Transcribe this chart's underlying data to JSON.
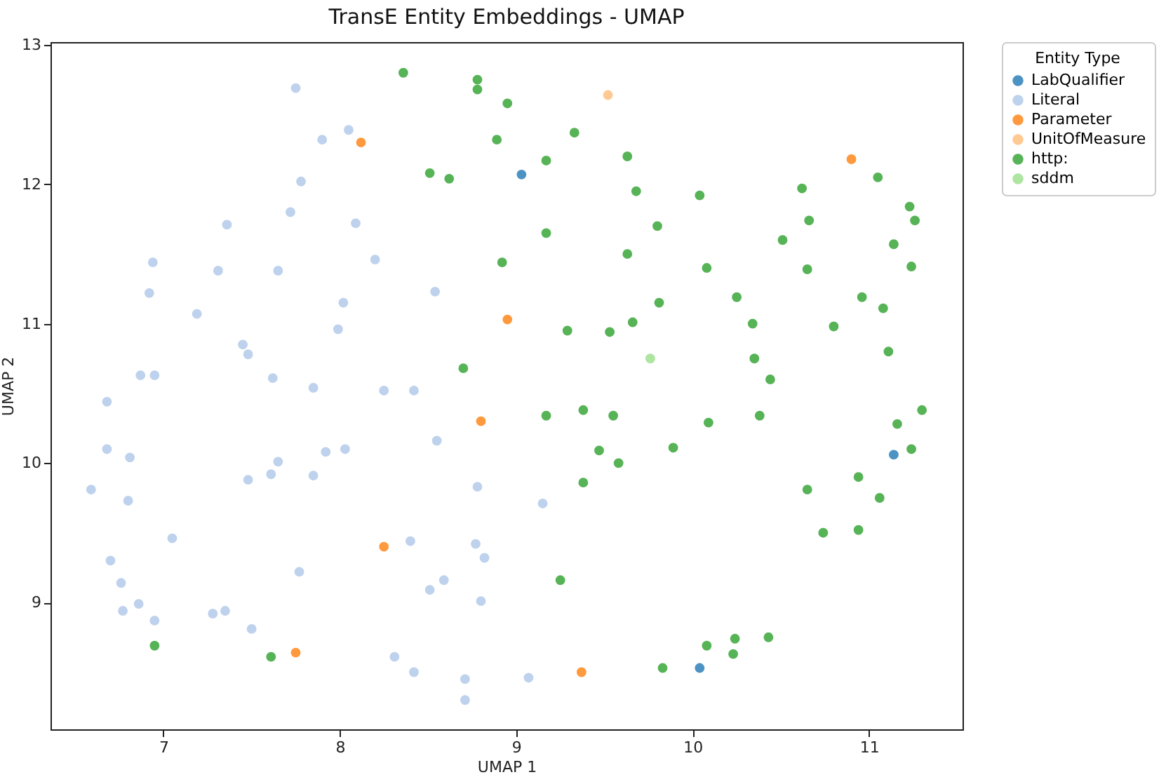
{
  "chart_data": {
    "type": "scatter",
    "title": "TransE Entity Embeddings - UMAP",
    "xlabel": "UMAP 1",
    "ylabel": "UMAP 2",
    "legend_title": "Entity Type",
    "legend": "top right",
    "grid": false,
    "marker": "circle",
    "xlim": [
      6.36,
      11.53
    ],
    "ylim": [
      8.09,
      13.02
    ],
    "xticks": [
      7,
      8,
      9,
      10,
      11
    ],
    "yticks": [
      9,
      10,
      11,
      12,
      13
    ],
    "series": [
      {
        "name": "LabQualifier",
        "color": "#4c92c3",
        "x": [
          9.03,
          11.14,
          10.04
        ],
        "values": [
          12.07,
          10.06,
          8.53
        ]
      },
      {
        "name": "Literal",
        "color": "#bed2ed",
        "x": [
          7.75,
          7.9,
          8.05,
          7.78,
          7.72,
          7.36,
          8.09,
          8.2,
          6.94,
          7.31,
          7.65,
          6.92,
          8.54,
          7.19,
          8.02,
          7.99,
          7.45,
          7.48,
          6.87,
          6.95,
          7.62,
          7.85,
          8.25,
          8.42,
          6.68,
          8.55,
          6.68,
          6.81,
          6.59,
          6.8,
          7.05,
          7.48,
          7.61,
          7.65,
          7.85,
          7.92,
          8.03,
          8.78,
          6.7,
          6.76,
          6.77,
          6.86,
          6.95,
          7.28,
          7.35,
          7.5,
          7.77,
          8.4,
          8.77,
          8.82,
          8.51,
          8.59,
          8.8,
          8.31,
          8.42,
          8.71,
          8.71,
          9.15,
          9.07
        ],
        "values": [
          12.69,
          12.32,
          12.39,
          12.02,
          11.8,
          11.71,
          11.72,
          11.46,
          11.44,
          11.38,
          11.38,
          11.22,
          11.23,
          11.07,
          11.15,
          10.96,
          10.85,
          10.78,
          10.63,
          10.63,
          10.61,
          10.54,
          10.52,
          10.52,
          10.44,
          10.16,
          10.1,
          10.04,
          9.81,
          9.73,
          9.46,
          9.88,
          9.92,
          10.01,
          9.91,
          10.08,
          10.1,
          9.83,
          9.3,
          9.14,
          8.94,
          8.99,
          8.87,
          8.92,
          8.94,
          8.81,
          9.22,
          9.44,
          9.42,
          9.32,
          9.09,
          9.16,
          9.01,
          8.61,
          8.5,
          8.45,
          8.3,
          9.71,
          8.46
        ]
      },
      {
        "name": "Parameter",
        "color": "#ff993e",
        "x": [
          8.12,
          8.95,
          8.8,
          8.25,
          7.75,
          9.37,
          10.9
        ],
        "values": [
          12.3,
          11.03,
          10.3,
          9.4,
          8.64,
          8.5,
          12.18
        ]
      },
      {
        "name": "UnitOfMeasure",
        "color": "#ffc993",
        "x": [
          9.52
        ],
        "values": [
          12.64
        ]
      },
      {
        "name": "http:",
        "color": "#56b356",
        "x": [
          8.36,
          8.78,
          8.78,
          8.95,
          8.89,
          8.51,
          8.62,
          8.92,
          8.7,
          9.33,
          9.17,
          9.63,
          9.68,
          10.04,
          10.62,
          11.05,
          11.23,
          11.26,
          10.66,
          9.8,
          9.17,
          10.51,
          11.14,
          9.63,
          10.08,
          10.65,
          11.24,
          10.25,
          9.81,
          10.96,
          11.08,
          10.34,
          9.66,
          9.29,
          9.53,
          10.8,
          11.11,
          10.35,
          10.44,
          9.17,
          9.38,
          9.55,
          10.09,
          10.38,
          11.3,
          11.16,
          9.47,
          9.89,
          9.58,
          9.38,
          11.24,
          10.94,
          10.65,
          11.06,
          10.74,
          10.94,
          9.25,
          10.08,
          10.24,
          10.23,
          10.43,
          9.83,
          6.95,
          7.61
        ],
        "values": [
          12.8,
          12.75,
          12.68,
          12.58,
          12.32,
          12.08,
          12.04,
          11.44,
          10.68,
          12.37,
          12.17,
          12.2,
          11.95,
          11.92,
          11.97,
          12.05,
          11.84,
          11.74,
          11.74,
          11.7,
          11.65,
          11.6,
          11.57,
          11.5,
          11.4,
          11.39,
          11.41,
          11.19,
          11.15,
          11.19,
          11.11,
          11.0,
          11.01,
          10.95,
          10.94,
          10.98,
          10.8,
          10.75,
          10.6,
          10.34,
          10.38,
          10.34,
          10.29,
          10.34,
          10.38,
          10.28,
          10.09,
          10.11,
          10.0,
          9.86,
          10.1,
          9.9,
          9.81,
          9.75,
          9.5,
          9.52,
          9.16,
          8.69,
          8.74,
          8.63,
          8.75,
          8.53,
          8.69,
          8.61
        ]
      },
      {
        "name": "sddm",
        "color": "#ade5a1",
        "x": [
          9.76
        ],
        "values": [
          10.75
        ]
      }
    ]
  }
}
